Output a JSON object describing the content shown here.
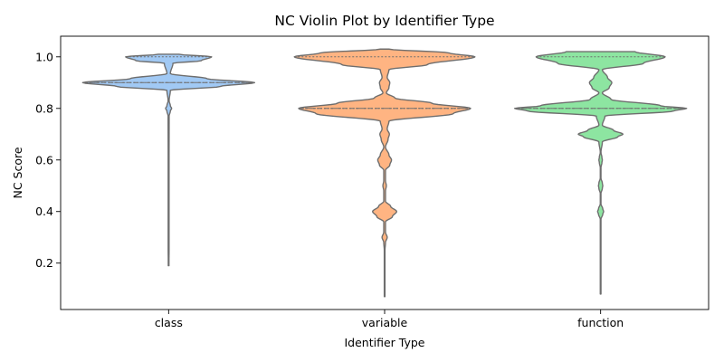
{
  "chart_data": {
    "type": "violin",
    "title": "NC Violin Plot by Identifier Type",
    "xlabel": "Identifier Type",
    "ylabel": "NC Score",
    "categories": [
      "class",
      "variable",
      "function"
    ],
    "ylim": [
      0.02,
      1.08
    ],
    "yticks": [
      "0.2",
      "0.4",
      "0.6",
      "0.8",
      "1.0"
    ],
    "grid": false,
    "colors": {
      "class": "#a1c9f4",
      "variable": "#ffb482",
      "function": "#8de5a1",
      "outline": "#6e6e6e"
    },
    "series": [
      {
        "category": "class",
        "min": 0.19,
        "max": 1.01,
        "quartiles": {
          "q1": 0.9,
          "median": 0.9,
          "q3": 1.0
        },
        "density": [
          {
            "y": 0.19,
            "w": 0.003
          },
          {
            "y": 0.25,
            "w": 0.005
          },
          {
            "y": 0.4,
            "w": 0.005
          },
          {
            "y": 0.6,
            "w": 0.005
          },
          {
            "y": 0.77,
            "w": 0.006
          },
          {
            "y": 0.79,
            "w": 0.02
          },
          {
            "y": 0.8,
            "w": 0.035
          },
          {
            "y": 0.81,
            "w": 0.02
          },
          {
            "y": 0.83,
            "w": 0.006
          },
          {
            "y": 0.87,
            "w": 0.02
          },
          {
            "y": 0.885,
            "w": 0.6
          },
          {
            "y": 0.9,
            "w": 1.0
          },
          {
            "y": 0.915,
            "w": 0.45
          },
          {
            "y": 0.935,
            "w": 0.02
          },
          {
            "y": 0.975,
            "w": 0.05
          },
          {
            "y": 0.985,
            "w": 0.38
          },
          {
            "y": 1.0,
            "w": 0.5
          },
          {
            "y": 1.01,
            "w": 0.12
          }
        ]
      },
      {
        "category": "variable",
        "min": 0.07,
        "max": 1.03,
        "quartiles": {
          "q1": 0.8,
          "median": 0.8,
          "q3": 1.0
        },
        "density": [
          {
            "y": 0.07,
            "w": 0.002
          },
          {
            "y": 0.25,
            "w": 0.004
          },
          {
            "y": 0.28,
            "w": 0.01
          },
          {
            "y": 0.3,
            "w": 0.03
          },
          {
            "y": 0.32,
            "w": 0.01
          },
          {
            "y": 0.36,
            "w": 0.01
          },
          {
            "y": 0.38,
            "w": 0.09
          },
          {
            "y": 0.4,
            "w": 0.14
          },
          {
            "y": 0.42,
            "w": 0.07
          },
          {
            "y": 0.44,
            "w": 0.01
          },
          {
            "y": 0.48,
            "w": 0.01
          },
          {
            "y": 0.5,
            "w": 0.02
          },
          {
            "y": 0.52,
            "w": 0.01
          },
          {
            "y": 0.56,
            "w": 0.01
          },
          {
            "y": 0.58,
            "w": 0.06
          },
          {
            "y": 0.6,
            "w": 0.08
          },
          {
            "y": 0.62,
            "w": 0.05
          },
          {
            "y": 0.65,
            "w": 0.01
          },
          {
            "y": 0.68,
            "w": 0.04
          },
          {
            "y": 0.7,
            "w": 0.055
          },
          {
            "y": 0.72,
            "w": 0.03
          },
          {
            "y": 0.75,
            "w": 0.05
          },
          {
            "y": 0.78,
            "w": 0.8
          },
          {
            "y": 0.8,
            "w": 1.0
          },
          {
            "y": 0.82,
            "w": 0.55
          },
          {
            "y": 0.84,
            "w": 0.12
          },
          {
            "y": 0.86,
            "w": 0.02
          },
          {
            "y": 0.88,
            "w": 0.05
          },
          {
            "y": 0.9,
            "w": 0.06
          },
          {
            "y": 0.92,
            "w": 0.03
          },
          {
            "y": 0.95,
            "w": 0.05
          },
          {
            "y": 0.97,
            "w": 0.5
          },
          {
            "y": 1.0,
            "w": 1.05
          },
          {
            "y": 1.015,
            "w": 0.75
          },
          {
            "y": 1.03,
            "w": 0.05
          }
        ]
      },
      {
        "category": "function",
        "min": 0.08,
        "max": 1.02,
        "quartiles": {
          "q1": 0.8,
          "median": 0.8,
          "q3": 1.0
        },
        "density": [
          {
            "y": 0.08,
            "w": 0.002
          },
          {
            "y": 0.3,
            "w": 0.004
          },
          {
            "y": 0.37,
            "w": 0.004
          },
          {
            "y": 0.39,
            "w": 0.025
          },
          {
            "y": 0.4,
            "w": 0.035
          },
          {
            "y": 0.41,
            "w": 0.025
          },
          {
            "y": 0.43,
            "w": 0.004
          },
          {
            "y": 0.47,
            "w": 0.004
          },
          {
            "y": 0.49,
            "w": 0.02
          },
          {
            "y": 0.5,
            "w": 0.025
          },
          {
            "y": 0.51,
            "w": 0.02
          },
          {
            "y": 0.53,
            "w": 0.004
          },
          {
            "y": 0.57,
            "w": 0.004
          },
          {
            "y": 0.59,
            "w": 0.015
          },
          {
            "y": 0.6,
            "w": 0.02
          },
          {
            "y": 0.61,
            "w": 0.015
          },
          {
            "y": 0.63,
            "w": 0.004
          },
          {
            "y": 0.67,
            "w": 0.02
          },
          {
            "y": 0.69,
            "w": 0.2
          },
          {
            "y": 0.7,
            "w": 0.26
          },
          {
            "y": 0.715,
            "w": 0.15
          },
          {
            "y": 0.735,
            "w": 0.02
          },
          {
            "y": 0.77,
            "w": 0.05
          },
          {
            "y": 0.79,
            "w": 0.85
          },
          {
            "y": 0.8,
            "w": 1.0
          },
          {
            "y": 0.81,
            "w": 0.7
          },
          {
            "y": 0.835,
            "w": 0.12
          },
          {
            "y": 0.86,
            "w": 0.02
          },
          {
            "y": 0.88,
            "w": 0.1
          },
          {
            "y": 0.9,
            "w": 0.13
          },
          {
            "y": 0.92,
            "w": 0.08
          },
          {
            "y": 0.95,
            "w": 0.02
          },
          {
            "y": 0.975,
            "w": 0.5
          },
          {
            "y": 1.0,
            "w": 0.75
          },
          {
            "y": 1.02,
            "w": 0.4
          }
        ]
      }
    ]
  }
}
